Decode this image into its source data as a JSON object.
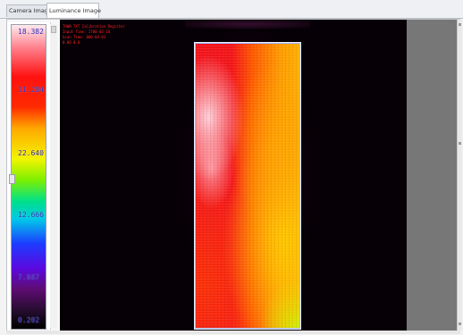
{
  "tabs": [
    {
      "label": "Camera Image"
    },
    {
      "label": "Luminance Image",
      "active": true
    }
  ],
  "color_scale": {
    "labels": [
      "18.382",
      "11.284",
      "22.640",
      "12.666",
      "7.667",
      "0.202"
    ],
    "label_color": "#2a2ab8",
    "top_color": "#ffe9ee",
    "bottom_color": "#000000"
  },
  "image_overlay": {
    "lines": [
      "TOWN TXT Calibration Register",
      "Input Time: 1700-03-10",
      "Scan Time: 000-04-03",
      "0.00 0.0"
    ],
    "text_color": "#ff2020"
  },
  "viewport": {
    "background": "#060006",
    "side_panel_color": "#777777"
  },
  "sample_colors": {
    "dominant": "#f2151d",
    "hot_spot": "#ffe1eb",
    "edge": "#ffb200",
    "corner": "#beff00"
  }
}
